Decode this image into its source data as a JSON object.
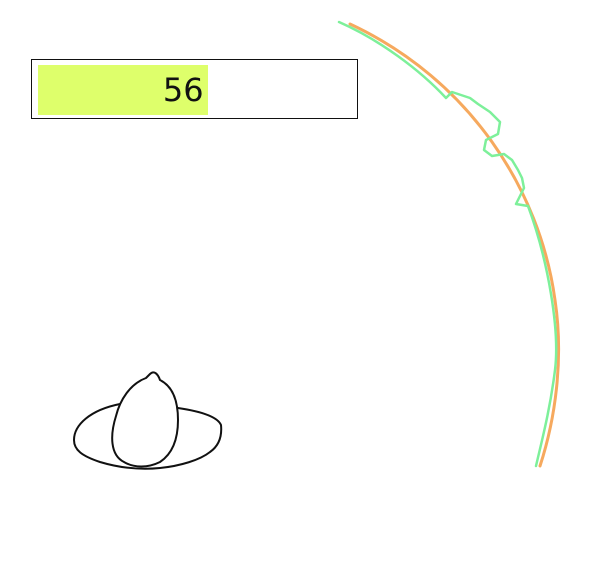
{
  "hud": {
    "score": "56",
    "score_level": 0.54
  },
  "colors": {
    "bar_fill": "#deff6b",
    "bar_border": "#111111",
    "arc_orange": "#f6a95e",
    "arc_green": "#7df09a",
    "sketch_stroke": "#111111"
  },
  "icons": {
    "sketch": "fedora-hat-icon"
  }
}
